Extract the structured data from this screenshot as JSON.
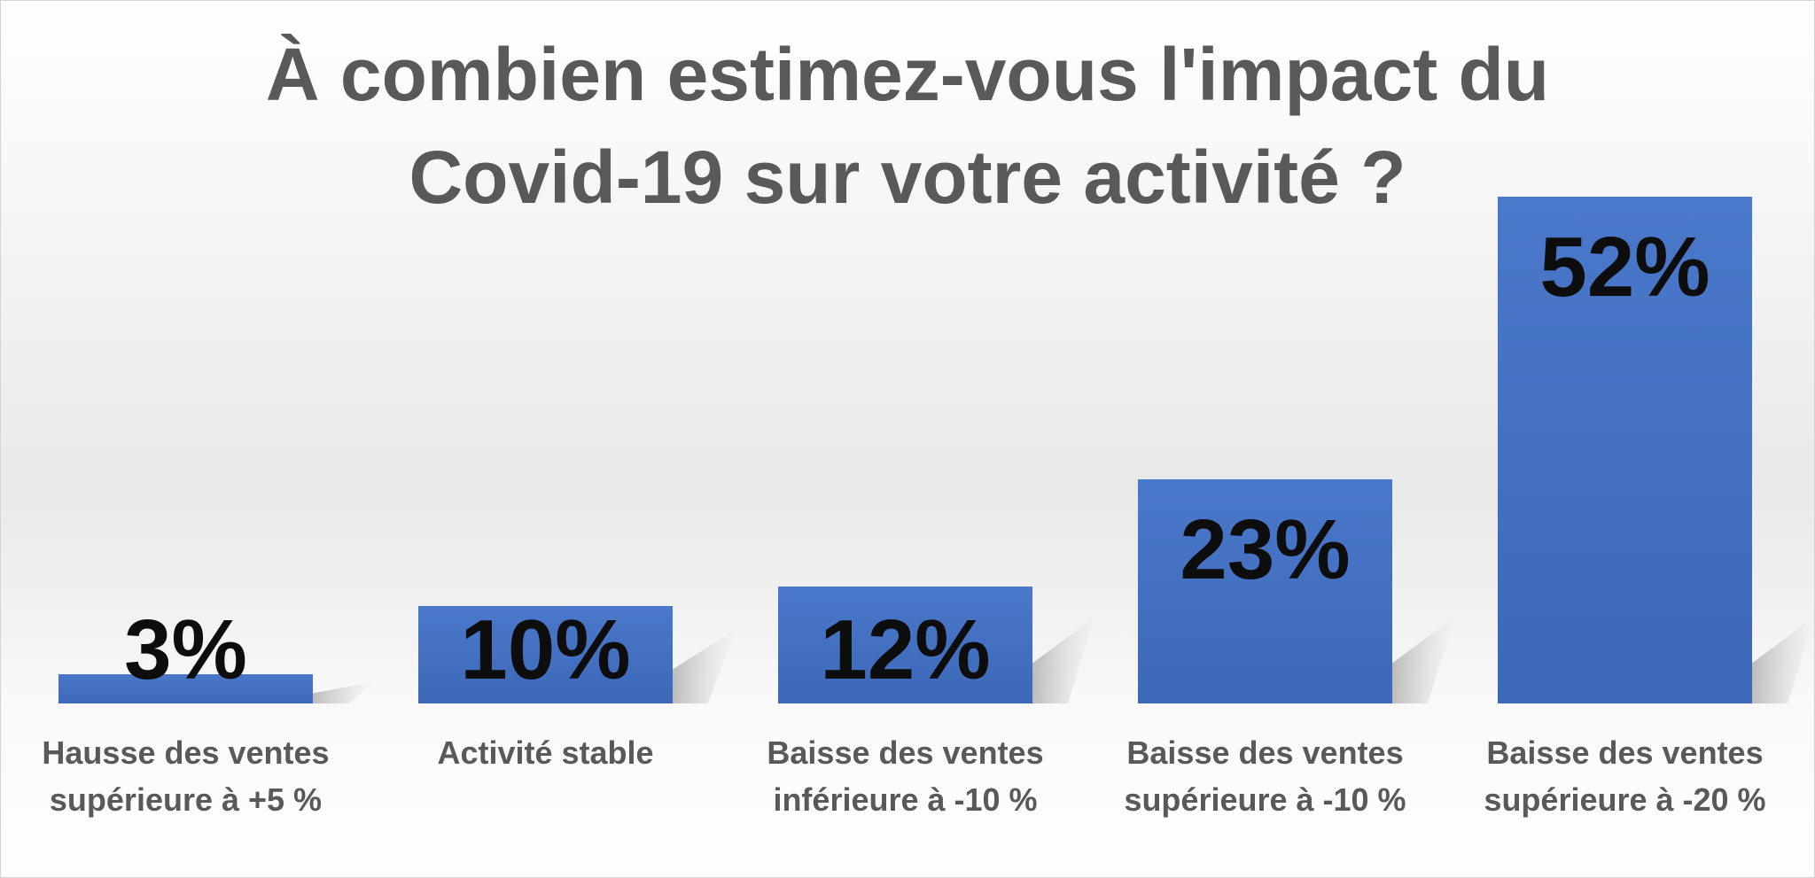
{
  "chart_data": {
    "type": "bar",
    "title_lines": [
      "À combien estimez-vous l'impact du",
      "Covid-19 sur votre activité ?"
    ],
    "categories": [
      [
        "Hausse des ventes",
        "supérieure à +5 %"
      ],
      [
        "Activité stable"
      ],
      [
        "Baisse des ventes",
        "inférieure à -10 %"
      ],
      [
        "Baisse des ventes",
        "supérieure à -10 %"
      ],
      [
        "Baisse des ventes",
        "supérieure à -20 %"
      ]
    ],
    "values": [
      3,
      10,
      12,
      23,
      52
    ],
    "value_labels": [
      "3%",
      "10%",
      "12%",
      "23%",
      "52%"
    ],
    "unit": "%",
    "ylim": [
      0,
      52
    ],
    "grid": false,
    "legend": "none",
    "bar_color": "#4472C4",
    "value_label_color": "#0d0d0d",
    "category_label_color": "#595959",
    "title_color": "#595959"
  }
}
